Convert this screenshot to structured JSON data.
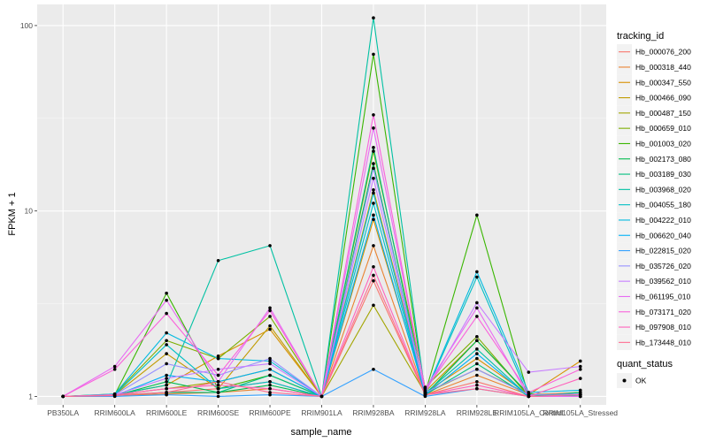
{
  "chart_data": {
    "type": "line",
    "xlabel": "sample_name",
    "ylabel": "FPKM + 1",
    "y_scale": "log10",
    "ylim": [
      0.9,
      130
    ],
    "y_ticks": [
      1,
      10,
      100
    ],
    "y_tick_labels": [
      "1",
      "10",
      "100"
    ],
    "grid": true,
    "legend_position": "right",
    "categories": [
      "PB350LA",
      "RRIM600LA",
      "RRIM600LE",
      "RRIM600SE",
      "RRIM600PE",
      "RRIM901LA",
      "RRIM928BA",
      "RRIM928LA",
      "RRIM928LE",
      "RRIM105LA_Control",
      "RRIM105LA_Stressed"
    ],
    "legend_title": "tracking_id",
    "quant_legend_title": "quant_status",
    "quant_legend_label": "OK",
    "series": [
      {
        "name": "Hb_000076_200",
        "color": "#F8766D",
        "values": [
          1.0,
          1.02,
          1.05,
          1.1,
          1.2,
          1.0,
          4.2,
          1.02,
          1.2,
          1.0,
          1.02
        ]
      },
      {
        "name": "Hb_000318_440",
        "color": "#EA8331",
        "values": [
          1.0,
          1.01,
          1.03,
          1.05,
          1.1,
          1.0,
          6.5,
          1.02,
          1.3,
          1.02,
          1.05
        ]
      },
      {
        "name": "Hb_000347_550",
        "color": "#D89000",
        "values": [
          1.0,
          1.02,
          1.15,
          1.65,
          2.3,
          1.0,
          9.0,
          1.05,
          1.6,
          1.02,
          1.55
        ]
      },
      {
        "name": "Hb_000466_090",
        "color": "#C09B00",
        "values": [
          1.0,
          1.02,
          1.7,
          1.1,
          2.4,
          1.0,
          13.0,
          1.06,
          2.0,
          1.02,
          1.02
        ]
      },
      {
        "name": "Hb_000487_150",
        "color": "#A3A500",
        "values": [
          1.0,
          1.02,
          1.1,
          1.2,
          1.4,
          1.0,
          3.1,
          1.04,
          1.4,
          1.03,
          1.02
        ]
      },
      {
        "name": "Hb_000659_010",
        "color": "#7CAE00",
        "values": [
          1.0,
          1.03,
          2.0,
          1.6,
          2.7,
          1.0,
          21.0,
          1.12,
          2.1,
          1.0,
          1.05
        ]
      },
      {
        "name": "Hb_001003_020",
        "color": "#39B600",
        "values": [
          1.0,
          1.02,
          3.6,
          1.1,
          1.3,
          1.0,
          70.0,
          1.04,
          9.5,
          1.0,
          1.0
        ]
      },
      {
        "name": "Hb_002173_080",
        "color": "#00BB4E",
        "values": [
          1.0,
          1.01,
          1.2,
          1.05,
          1.15,
          1.0,
          18.0,
          1.02,
          2.0,
          1.03,
          1.0
        ]
      },
      {
        "name": "Hb_003189_030",
        "color": "#00BF7D",
        "values": [
          1.0,
          1.01,
          1.05,
          1.05,
          1.3,
          1.0,
          22.0,
          1.02,
          1.5,
          1.0,
          1.05
        ]
      },
      {
        "name": "Hb_003968_020",
        "color": "#00C1A3",
        "values": [
          1.0,
          1.02,
          1.15,
          5.4,
          6.5,
          1.0,
          110.0,
          1.04,
          1.8,
          1.0,
          1.0
        ]
      },
      {
        "name": "Hb_004055_180",
        "color": "#00BFC4",
        "values": [
          1.0,
          1.02,
          1.9,
          1.1,
          1.2,
          1.0,
          11.0,
          1.03,
          4.4,
          1.0,
          1.0
        ]
      },
      {
        "name": "Hb_004222_010",
        "color": "#00BAE0",
        "values": [
          1.0,
          1.03,
          2.2,
          1.6,
          1.55,
          1.0,
          12.5,
          1.04,
          4.7,
          1.05,
          1.08
        ]
      },
      {
        "name": "Hb_006620_040",
        "color": "#00B0F6",
        "values": [
          1.0,
          1.01,
          1.3,
          1.2,
          1.4,
          1.0,
          9.5,
          1.02,
          1.7,
          1.0,
          1.02
        ]
      },
      {
        "name": "Hb_022815_020",
        "color": "#35A2FF",
        "values": [
          1.0,
          1.0,
          1.02,
          1.0,
          1.02,
          1.0,
          1.4,
          1.0,
          1.1,
          1.0,
          1.0
        ]
      },
      {
        "name": "Hb_035726_020",
        "color": "#9590FF",
        "values": [
          1.0,
          1.02,
          1.5,
          1.3,
          1.6,
          1.0,
          17.0,
          1.05,
          1.4,
          1.02,
          1.03
        ]
      },
      {
        "name": "Hb_039562_010",
        "color": "#C77CFF",
        "values": [
          1.0,
          1.02,
          1.25,
          1.4,
          1.5,
          1.0,
          15.0,
          1.05,
          3.2,
          1.35,
          1.45
        ]
      },
      {
        "name": "Hb_061195_010",
        "color": "#E76BF3",
        "values": [
          1.0,
          1.45,
          3.3,
          1.2,
          3.0,
          1.0,
          28.0,
          1.1,
          3.0,
          1.0,
          1.0
        ]
      },
      {
        "name": "Hb_073171_020",
        "color": "#FA62DB",
        "values": [
          1.0,
          1.4,
          2.8,
          1.3,
          2.9,
          1.0,
          33.0,
          1.08,
          2.7,
          1.05,
          1.4
        ]
      },
      {
        "name": "Hb_097908_010",
        "color": "#FF62BC",
        "values": [
          1.0,
          1.02,
          1.1,
          1.15,
          1.1,
          1.0,
          5.0,
          1.02,
          1.15,
          1.0,
          1.25
        ]
      },
      {
        "name": "Hb_173448_010",
        "color": "#FF6C91",
        "values": [
          1.0,
          1.01,
          1.05,
          1.2,
          1.05,
          1.0,
          4.5,
          1.02,
          1.1,
          1.0,
          1.02
        ]
      }
    ]
  }
}
